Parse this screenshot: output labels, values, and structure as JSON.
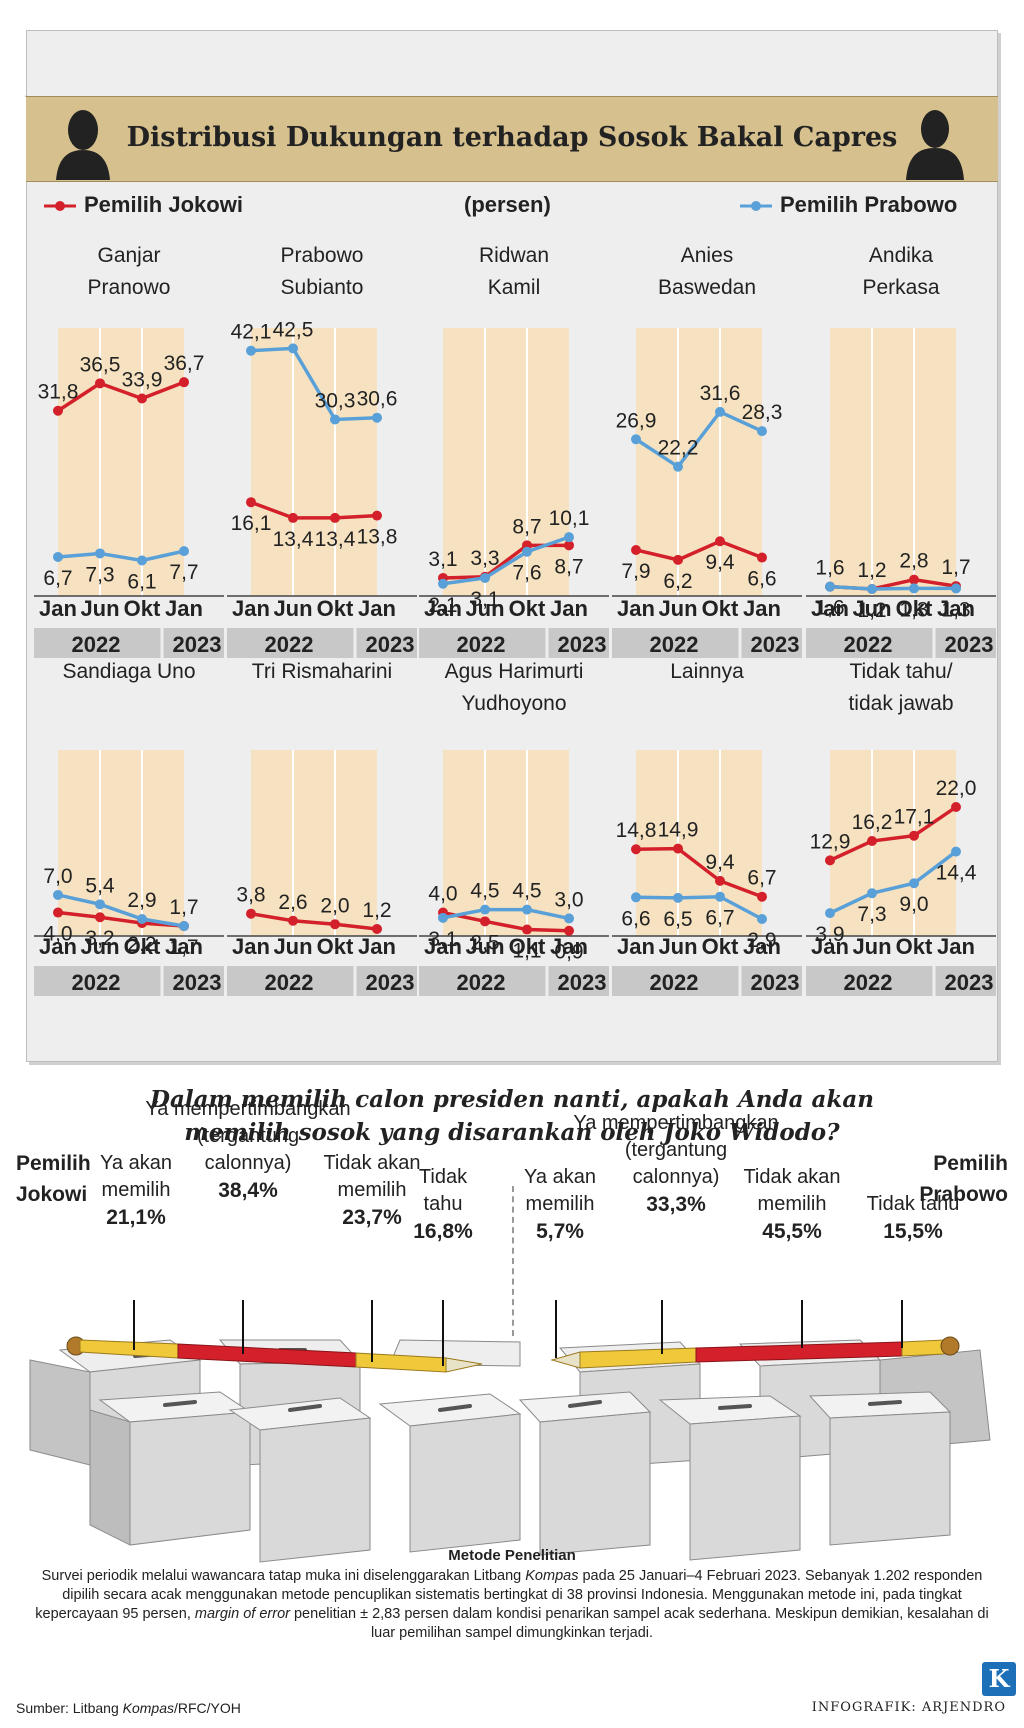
{
  "header": {
    "title": "Distribusi Dukungan terhadap Sosok Bakal Capres",
    "legend_jokowi": "Pemilih Jokowi",
    "unit": "(persen)",
    "legend_prabowo": "Pemilih Prabowo"
  },
  "colors": {
    "jokowi": "#d3202a",
    "prabowo": "#5aa0d8",
    "band": "#d6c08e",
    "panel": "#f6e2c0"
  },
  "axis": {
    "ticks": [
      "Jan",
      "Jun",
      "Okt",
      "Jan"
    ],
    "years": [
      "2022",
      "2023"
    ]
  },
  "chart_data": {
    "type": "line",
    "x": [
      "Jan 2022",
      "Jun 2022",
      "Okt 2022",
      "Jan 2023"
    ],
    "panels": [
      {
        "name": [
          "Ganjar",
          "Pranowo"
        ],
        "series": [
          {
            "name": "Pemilih Jokowi",
            "values": [
              31.8,
              36.5,
              33.9,
              36.7
            ]
          },
          {
            "name": "Pemilih Prabowo",
            "values": [
              6.7,
              7.3,
              6.1,
              7.7
            ]
          }
        ]
      },
      {
        "name": [
          "Prabowo",
          "Subianto"
        ],
        "series": [
          {
            "name": "Pemilih Jokowi",
            "values": [
              16.1,
              13.4,
              13.4,
              13.8
            ]
          },
          {
            "name": "Pemilih Prabowo",
            "values": [
              42.1,
              42.5,
              30.3,
              30.6
            ]
          }
        ]
      },
      {
        "name": [
          "Ridwan",
          "Kamil"
        ],
        "series": [
          {
            "name": "Pemilih Jokowi",
            "values": [
              3.1,
              3.3,
              8.7,
              8.7
            ]
          },
          {
            "name": "Pemilih Prabowo",
            "values": [
              2.1,
              3.1,
              7.6,
              10.1
            ]
          }
        ]
      },
      {
        "name": [
          "Anies",
          "Baswedan"
        ],
        "series": [
          {
            "name": "Pemilih Jokowi",
            "values": [
              7.9,
              6.2,
              9.4,
              6.6
            ]
          },
          {
            "name": "Pemilih Prabowo",
            "values": [
              26.9,
              22.2,
              31.6,
              28.3
            ]
          }
        ]
      },
      {
        "name": [
          "Andika",
          "Perkasa"
        ],
        "series": [
          {
            "name": "Pemilih Jokowi",
            "values": [
              1.6,
              1.2,
              2.8,
              1.7
            ]
          },
          {
            "name": "Pemilih Prabowo",
            "values": [
              1.6,
              1.2,
              1.3,
              1.3
            ]
          }
        ]
      },
      {
        "name": [
          "Sandiaga Uno"
        ],
        "series": [
          {
            "name": "Pemilih Jokowi",
            "values": [
              4.0,
              3.2,
              2.2,
              1.7
            ]
          },
          {
            "name": "Pemilih Prabowo",
            "values": [
              7.0,
              5.4,
              2.9,
              1.7
            ]
          }
        ]
      },
      {
        "name": [
          "Tri Rismaharini"
        ],
        "series": [
          {
            "name": "Pemilih Jokowi",
            "values": [
              3.8,
              2.6,
              2.0,
              1.2
            ]
          }
        ]
      },
      {
        "name": [
          "Agus Harimurti",
          "Yudhoyono"
        ],
        "series": [
          {
            "name": "Pemilih Jokowi",
            "values": [
              4.0,
              2.5,
              1.1,
              0.9
            ]
          },
          {
            "name": "Pemilih Prabowo",
            "values": [
              3.1,
              4.5,
              4.5,
              3.0
            ]
          }
        ]
      },
      {
        "name": [
          "Lainnya"
        ],
        "series": [
          {
            "name": "Pemilih Jokowi",
            "values": [
              14.8,
              14.9,
              9.4,
              6.7
            ]
          },
          {
            "name": "Pemilih Prabowo",
            "values": [
              6.6,
              6.5,
              6.7,
              2.9
            ]
          }
        ]
      },
      {
        "name": [
          "Tidak tahu/",
          "tidak jawab"
        ],
        "series": [
          {
            "name": "Pemilih Jokowi",
            "values": [
              12.9,
              16.2,
              17.1,
              22.0
            ]
          },
          {
            "name": "Pemilih Prabowo",
            "values": [
              3.9,
              7.3,
              9.0,
              14.4
            ]
          }
        ]
      }
    ],
    "ylim": [
      0,
      46
    ]
  },
  "question": {
    "line1": "Dalam memilih calon presiden nanti, apakah Anda akan",
    "line2": "memilih sosok yang disarankan oleh Joko Widodo?",
    "left_label": [
      "Pemilih",
      "Jokowi"
    ],
    "right_label": [
      "Pemilih",
      "Prabowo"
    ],
    "jokowi": [
      {
        "label": [
          "Ya akan",
          "memilih"
        ],
        "pct": "21,1%"
      },
      {
        "label": [
          "Ya mempertimbangkan",
          "(tergantung",
          "calonnya)"
        ],
        "pct": "38,4%"
      },
      {
        "label": [
          "Tidak akan",
          "memilih"
        ],
        "pct": "23,7%"
      },
      {
        "label": [
          "Tidak",
          "tahu"
        ],
        "pct": "16,8%"
      }
    ],
    "prabowo": [
      {
        "label": [
          "Ya akan",
          "memilih"
        ],
        "pct": "5,7%"
      },
      {
        "label": [
          "Ya mempertimbangkan",
          "(tergantung",
          "calonnya)"
        ],
        "pct": "33,3%"
      },
      {
        "label": [
          "Tidak akan",
          "memilih"
        ],
        "pct": "45,5%"
      },
      {
        "label": [
          "Tidak tahu"
        ],
        "pct": "15,5%"
      }
    ]
  },
  "method": {
    "title": "Metode Penelitian",
    "text_a": "Survei periodik melalui wawancara tatap muka ini diselenggarakan Litbang ",
    "text_a_em": "Kompas",
    "text_b": " pada 25 Januari–4 Februari 2023. Sebanyak 1.202 responden dipilih secara acak menggunakan metode pencuplikan sistematis bertingkat di 38 provinsi Indonesia. Menggunakan metode ini, pada tingkat kepercayaan 95 persen, ",
    "text_b_em": "margin of error",
    "text_c": " penelitian ± 2,83 persen dalam kondisi penarikan sampel acak sederhana. Meskipun demikian, kesalahan di luar pemilihan sampel dimungkinkan terjadi."
  },
  "footer": {
    "source_a": "Sumber:  Litbang ",
    "source_em": "Kompas",
    "source_b": "/RFC/YOH",
    "credit": "INFOGRAFIK: ARJENDRO",
    "logo": "K"
  }
}
